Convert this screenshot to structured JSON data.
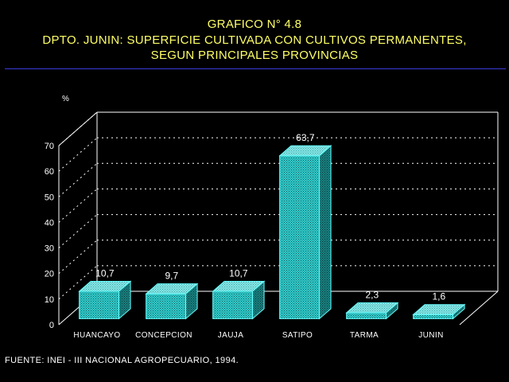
{
  "title": {
    "line1": "GRAFICO N° 4.8",
    "line2": "DPTO. JUNIN: SUPERFICIE CULTIVADA CON CULTIVOS PERMANENTES,",
    "line3": "SEGUN PRINCIPALES PROVINCIAS"
  },
  "source": "FUENTE: INEI - III NACIONAL AGROPECUARIO, 1994.",
  "colors": {
    "title": "#ffff66",
    "rule": "#3a3ad8",
    "bar_front": "#33cccc",
    "bar_top": "#88e6e6",
    "bar_side": "#1a8080",
    "grid": "#ffffff",
    "text": "#ffffff"
  },
  "chart_data": {
    "type": "bar",
    "ylabel": "%",
    "xlabel": "",
    "ylim": [
      0,
      70
    ],
    "yticks": [
      0,
      10,
      20,
      30,
      40,
      50,
      60,
      70
    ],
    "categories": [
      "HUANCAYO",
      "CONCEPCION",
      "JAUJA",
      "SATIPO",
      "TARMA",
      "JUNIN"
    ],
    "values": [
      10.7,
      9.7,
      10.7,
      63.7,
      2.3,
      1.6
    ],
    "value_labels": [
      "10,7",
      "9,7",
      "10,7",
      "63,7",
      "2,3",
      "1,6"
    ],
    "grid": true,
    "legend": "none"
  }
}
